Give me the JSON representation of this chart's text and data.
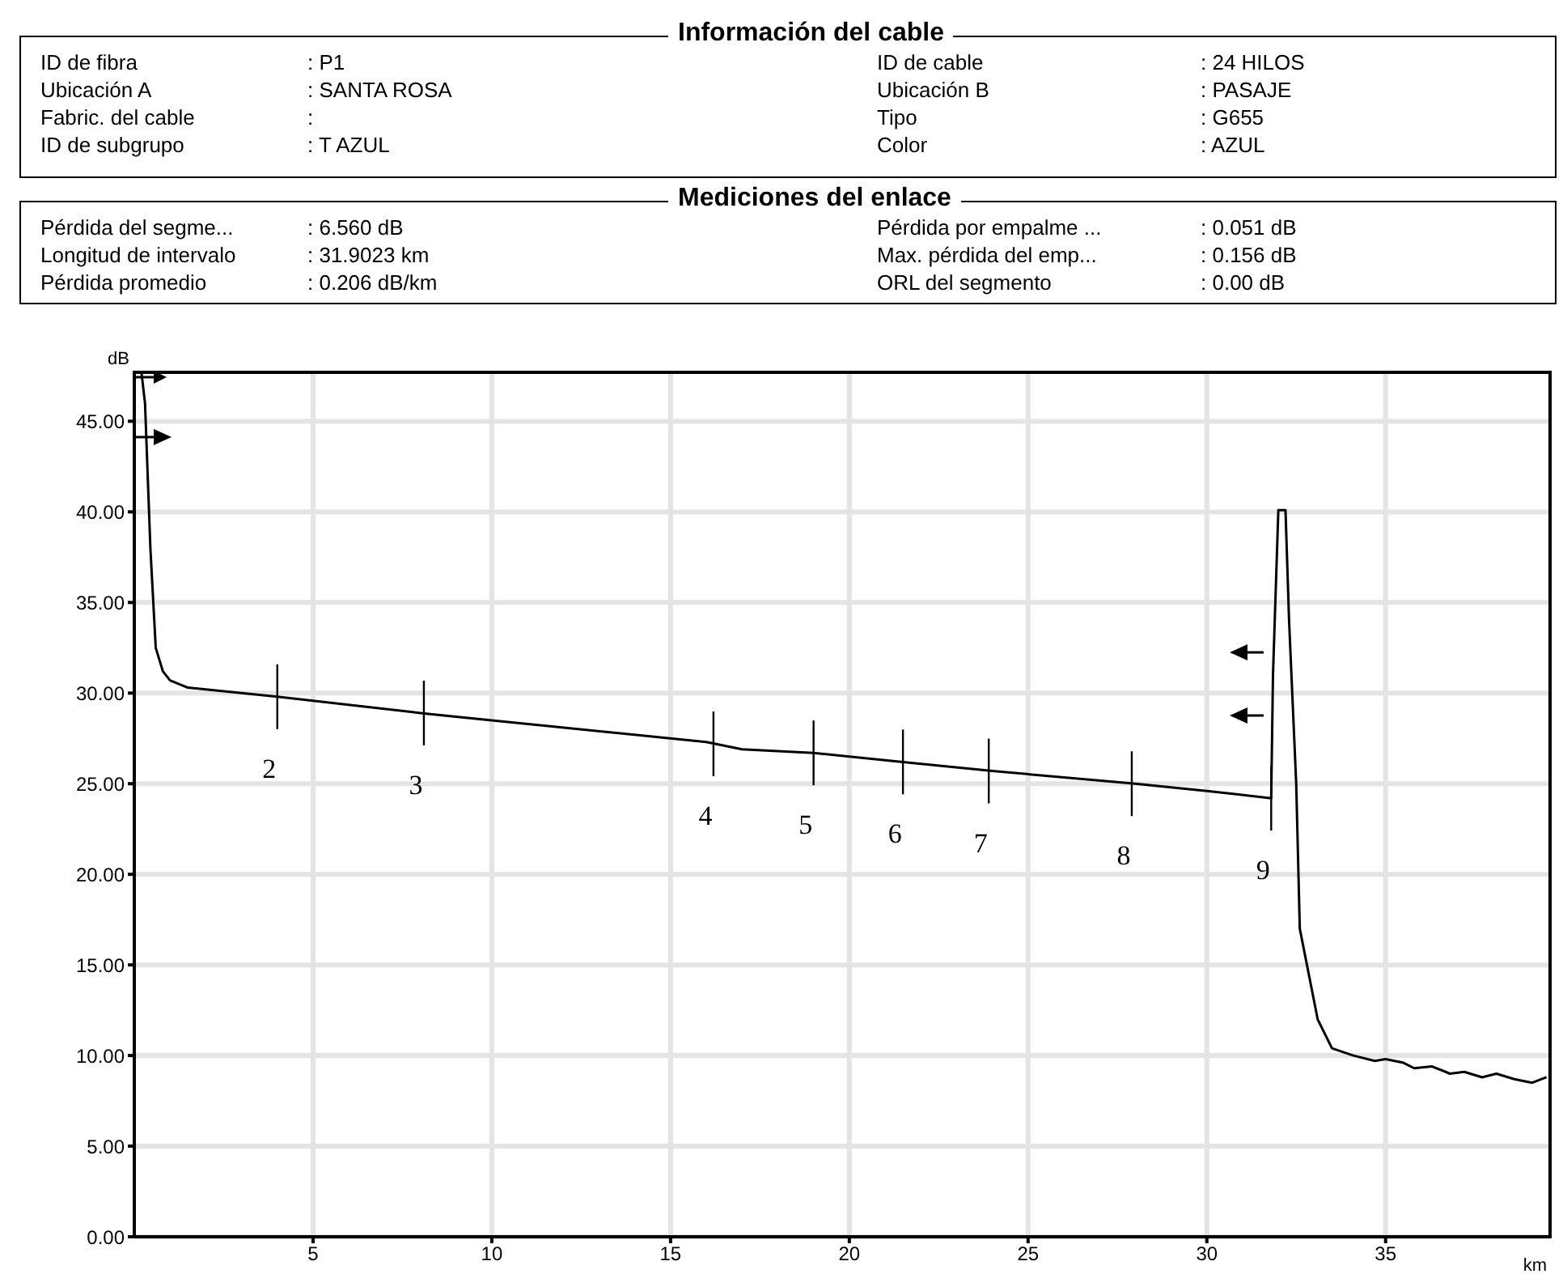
{
  "chart_data": {
    "type": "line",
    "xlabel": "km",
    "ylabel": "dB",
    "annotations": [
      "Información del cable",
      "ID de fibra",
      ": P1",
      "ID de cable",
      ": 24 HILOS",
      "Ubicación A",
      ": SANTA ROSA",
      "Ubicación B",
      ": PASAJE",
      "Fabric. del cable",
      ":",
      "Tipo",
      ": G655",
      "ID de subgrupo",
      ": T AZUL",
      "Color",
      ": AZUL",
      "Mediciones del enlace",
      "Pérdida del segme...",
      ": 6.560 dB",
      "Pérdida por empalme ...",
      ": 0.051 dB",
      "Longitud de intervalo",
      ": 31.9023 km",
      "Max. pérdida del emp...",
      ": 0.156 dB",
      "Pérdida promedio",
      ": 0.206 dB/km",
      "ORL del segmento",
      ": 0.00 dB",
      {
        "text": "2",
        "x": 4.0,
        "y": 29.8
      },
      {
        "text": "3",
        "x": 8.1,
        "y": 28.9
      },
      {
        "text": "4",
        "x": 16.2,
        "y": 27.2
      },
      {
        "text": "5",
        "x": 19.0,
        "y": 26.7
      },
      {
        "text": "6",
        "x": 21.5,
        "y": 26.2
      },
      {
        "text": "7",
        "x": 23.9,
        "y": 25.7
      },
      {
        "text": "8",
        "x": 27.9,
        "y": 25.0
      },
      {
        "text": "9",
        "x": 31.8,
        "y": 24.2
      }
    ],
    "series": [
      {
        "color": "#000000",
        "x": [
          0.2,
          0.3,
          0.45,
          0.6,
          0.8,
          1.0,
          1.5,
          2,
          4,
          8,
          10,
          16,
          17,
          19,
          21.5,
          24,
          28,
          30,
          31.8,
          31.85,
          32.0,
          32.2,
          32.3,
          32.5,
          32.6,
          32.8,
          33.1,
          33.5,
          34.1,
          34.7,
          35,
          35.5,
          35.8,
          36.3,
          36.8,
          37.2,
          37.7,
          38.1,
          38.6,
          39.1,
          39.5
        ],
        "values": [
          47.7,
          46,
          38,
          32.5,
          31.2,
          30.7,
          30.3,
          30.2,
          29.8,
          28.9,
          28.5,
          27.3,
          26.9,
          26.7,
          26.2,
          25.7,
          25.0,
          24.6,
          24.2,
          31,
          40.1,
          40.1,
          34,
          25,
          17,
          15,
          12,
          10.4,
          10.0,
          9.7,
          9.8,
          9.6,
          9.3,
          9.4,
          9.0,
          9.1,
          8.8,
          9.0,
          8.7,
          8.5,
          8.8
        ]
      }
    ],
    "xlim": [
      0,
      39.6
    ],
    "ylim": [
      0,
      47.7
    ],
    "xticks": [
      5,
      10,
      15,
      20,
      25,
      30,
      35
    ],
    "yticks": [
      {
        "value": 0,
        "label": "0.00"
      },
      {
        "value": 5,
        "label": "5.00"
      },
      {
        "value": 10,
        "label": "10.00"
      },
      {
        "value": 15,
        "label": "15.00"
      },
      {
        "value": 20,
        "label": "20.00"
      },
      {
        "value": 25,
        "label": "25.00"
      },
      {
        "value": 30,
        "label": "30.00"
      },
      {
        "value": 35,
        "label": "35.00"
      },
      {
        "value": 40,
        "label": "40.00"
      },
      {
        "value": 45,
        "label": "45.00"
      }
    ],
    "grid": true,
    "legend": false,
    "marker": "none",
    "line_style": "solid"
  }
}
